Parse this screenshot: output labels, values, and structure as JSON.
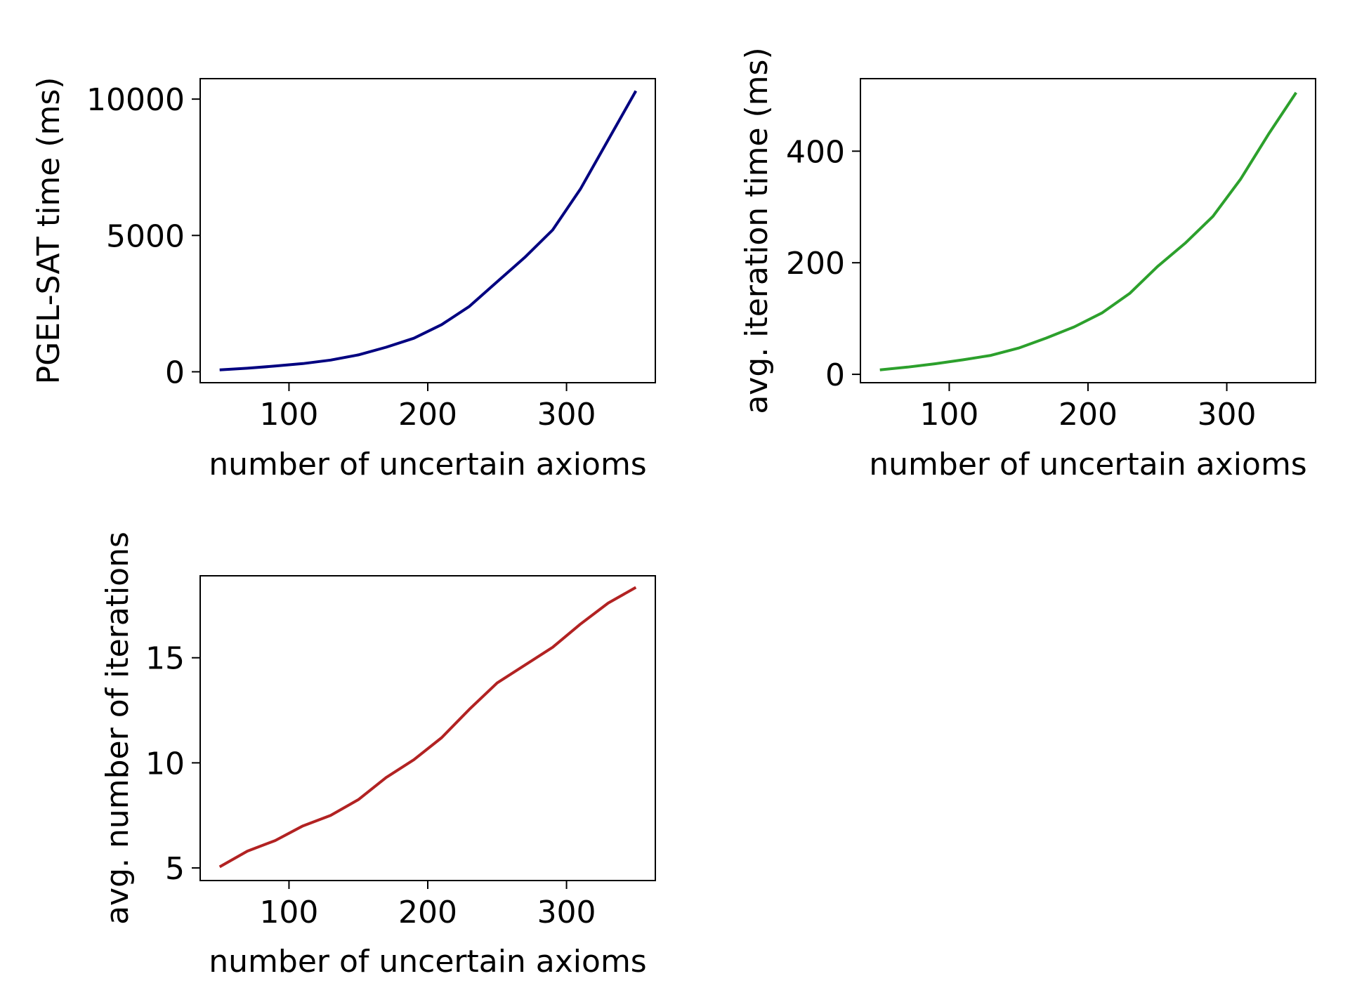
{
  "chart_data": [
    {
      "type": "line",
      "title": "",
      "xlabel": "number of uncertain axioms",
      "ylabel": "PGEL-SAT time (ms)",
      "xlim": [
        36,
        364
      ],
      "ylim": [
        -400,
        10750
      ],
      "xticks": [
        100,
        200,
        300
      ],
      "yticks": [
        0,
        5000,
        10000
      ],
      "grid": false,
      "series": [
        {
          "color": "#000080",
          "x": [
            50,
            70,
            90,
            110,
            130,
            150,
            170,
            190,
            210,
            230,
            250,
            270,
            290,
            310,
            330,
            350
          ],
          "y": [
            70,
            130,
            210,
            300,
            430,
            620,
            900,
            1230,
            1730,
            2400,
            3300,
            4200,
            5200,
            6700,
            8500,
            10300
          ]
        }
      ]
    },
    {
      "type": "line",
      "title": "",
      "xlabel": "number of uncertain axioms",
      "ylabel": "avg. iteration time (ms)",
      "xlim": [
        36,
        364
      ],
      "ylim": [
        -15,
        530
      ],
      "xticks": [
        100,
        200,
        300
      ],
      "yticks": [
        0,
        200,
        400
      ],
      "grid": false,
      "series": [
        {
          "color": "#2ca02c",
          "x": [
            50,
            70,
            90,
            110,
            130,
            150,
            170,
            190,
            210,
            230,
            250,
            270,
            290,
            310,
            330,
            350
          ],
          "y": [
            8,
            13,
            19,
            26,
            34,
            47,
            65,
            85,
            110,
            145,
            193,
            235,
            283,
            350,
            430,
            505
          ]
        }
      ]
    },
    {
      "type": "line",
      "title": "",
      "xlabel": "number of uncertain axioms",
      "ylabel": "avg. number of iterations",
      "xlim": [
        36,
        364
      ],
      "ylim": [
        4.4,
        18.9
      ],
      "xticks": [
        100,
        200,
        300
      ],
      "yticks": [
        5,
        10,
        15
      ],
      "grid": false,
      "series": [
        {
          "color": "#b22222",
          "x": [
            50,
            70,
            90,
            110,
            130,
            150,
            170,
            190,
            210,
            230,
            250,
            270,
            290,
            310,
            330,
            350
          ],
          "y": [
            5.05,
            5.8,
            6.3,
            7.0,
            7.5,
            8.25,
            9.3,
            10.15,
            11.2,
            12.55,
            13.8,
            14.65,
            15.5,
            16.6,
            17.6,
            18.35
          ]
        }
      ]
    }
  ]
}
